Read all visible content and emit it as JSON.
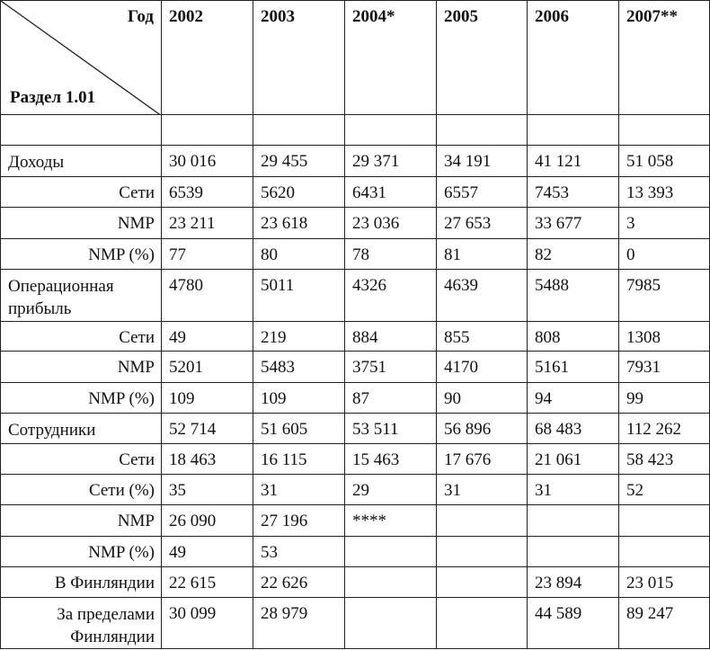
{
  "header": {
    "corner_top": "Год",
    "corner_bottom": "Раздел 1.01",
    "years": [
      "2002",
      "2003",
      "2004*",
      "2005",
      "2006",
      "2007**"
    ]
  },
  "rows": [
    {
      "label": "",
      "style": "blank",
      "values": [
        "",
        "",
        "",
        "",
        "",
        ""
      ]
    },
    {
      "label": "Доходы",
      "style": "main",
      "values": [
        "30 016",
        "29 455",
        "29 371",
        "34 191",
        "41 121",
        "51 058"
      ]
    },
    {
      "label": "Сети",
      "style": "sub",
      "values": [
        "6539",
        "5620",
        "6431",
        "6557",
        "7453",
        "13 393"
      ]
    },
    {
      "label": "NMP",
      "style": "sub",
      "values": [
        "23 211",
        "23 618",
        "23 036",
        "27 653",
        "33 677",
        "3"
      ]
    },
    {
      "label": "NMP (%)",
      "style": "sub",
      "values": [
        "77",
        "80",
        "78",
        "81",
        "82",
        "0"
      ]
    },
    {
      "label": "Операционная прибыль",
      "style": "main",
      "values": [
        "4780",
        "5011",
        "4326",
        "4639",
        "5488",
        "7985"
      ]
    },
    {
      "label": "Сети",
      "style": "sub",
      "values": [
        "49",
        "219",
        "884",
        "855",
        "808",
        "1308"
      ]
    },
    {
      "label": "NMP",
      "style": "sub",
      "values": [
        "5201",
        "5483",
        "3751",
        "4170",
        "5161",
        "7931"
      ]
    },
    {
      "label": "NMP (%)",
      "style": "sub",
      "values": [
        "109",
        "109",
        "87",
        "90",
        "94",
        "99"
      ]
    },
    {
      "label": "Сотрудники",
      "style": "main",
      "values": [
        "52 714",
        "51 605",
        "53 511",
        "56 896",
        "68 483",
        "112 262"
      ]
    },
    {
      "label": "Сети",
      "style": "sub",
      "values": [
        "18 463",
        "16 115",
        "15 463",
        "17 676",
        "21 061",
        "58 423"
      ]
    },
    {
      "label": "Сети (%)",
      "style": "sub",
      "values": [
        "35",
        "31",
        "29",
        "31",
        "31",
        "52"
      ]
    },
    {
      "label": "NMP",
      "style": "sub",
      "values": [
        "26 090",
        "27 196",
        "****",
        "",
        "",
        ""
      ]
    },
    {
      "label": "NMP (%)",
      "style": "sub",
      "values": [
        "49",
        "53",
        "",
        "",
        "",
        ""
      ]
    },
    {
      "label": "В Финляндии",
      "style": "sub",
      "values": [
        "22 615",
        "22 626",
        "",
        "",
        "23 894",
        "23 015"
      ]
    },
    {
      "label": "За пределами Финляндии",
      "style": "wrap",
      "values": [
        "30 099",
        "28 979",
        "",
        "",
        "44 589",
        "89 247"
      ]
    }
  ]
}
